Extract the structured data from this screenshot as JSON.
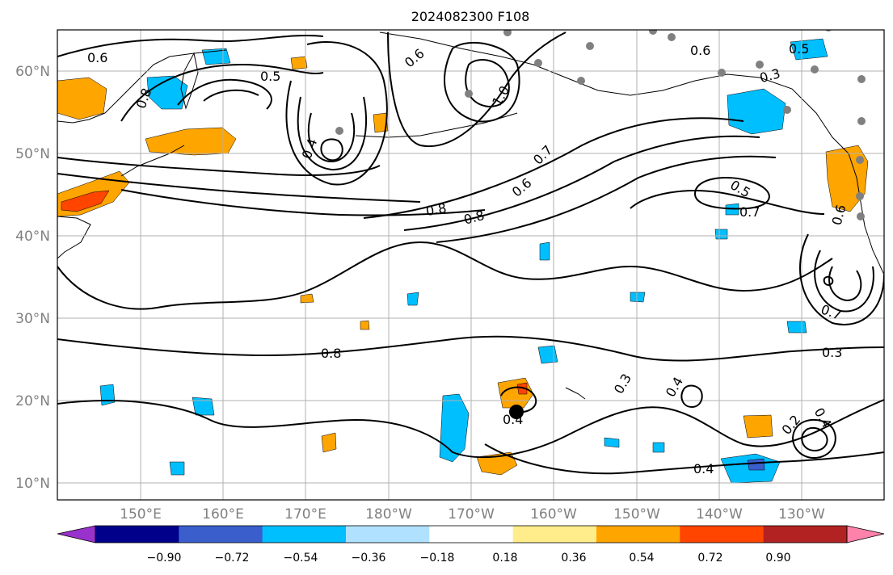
{
  "title": "2024082300 F108",
  "map": {
    "lat_labels": [
      "60°N",
      "50°N",
      "40°N",
      "30°N",
      "20°N",
      "10°N"
    ],
    "lon_labels": [
      "150°E",
      "160°E",
      "170°E",
      "180°W",
      "170°W",
      "160°W",
      "150°W",
      "140°W",
      "130°W"
    ],
    "contour_labels": [
      "0.6",
      "0.8",
      "0.5",
      "0.4",
      "0.8",
      "0.6",
      "1.0",
      "0.6",
      "0.5",
      "0.7",
      "0.6",
      "0.8",
      "0.5",
      "0.7",
      "0.6",
      "0.7",
      "0.8",
      "0.3",
      "0.4",
      "0.3",
      "0.4",
      "0.4",
      "0.2",
      "0.4",
      "0.3"
    ],
    "storm_marker": "black-dot"
  },
  "colorbar": {
    "colors": [
      "#9932cc",
      "#00008b",
      "#3a5fcd",
      "#00bfff",
      "#b0e2ff",
      "#ffffff",
      "#ffec8b",
      "#ffa500",
      "#ff4500",
      "#b22222",
      "#ff82ab"
    ],
    "tick_labels": [
      "−0.90",
      "−0.72",
      "−0.54",
      "−0.36",
      "−0.18",
      "0.18",
      "0.36",
      "0.54",
      "0.72",
      "0.90"
    ]
  }
}
